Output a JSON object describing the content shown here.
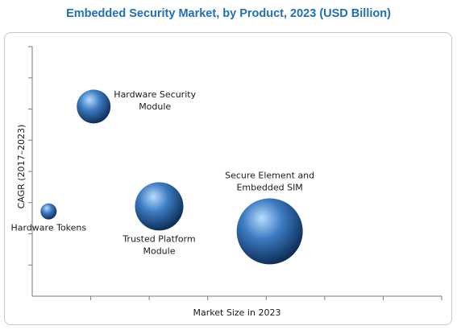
{
  "chart_data": {
    "type": "scatter",
    "title": "Embedded Security Market, by Product, 2023 (USD Billion)",
    "xlabel": "Market Size in 2023",
    "ylabel": "CAGR (2017–2023)",
    "xlim": [
      0,
      10
    ],
    "ylim": [
      0,
      10
    ],
    "grid": false,
    "legend": "none",
    "series": [
      {
        "points": [
          {
            "label": "Hardware Tokens",
            "x": 0.4,
            "y": 3.4,
            "size": 0.5,
            "label_lines": [
              "Hardware Tokens"
            ]
          },
          {
            "label": "Hardware Security Module",
            "x": 1.5,
            "y": 7.6,
            "size": 1.05,
            "label_lines": [
              "Hardware Security",
              "Module"
            ]
          },
          {
            "label": "Trusted Platform Module",
            "x": 3.1,
            "y": 3.6,
            "size": 1.5,
            "label_lines": [
              "Trusted Platform",
              "Module"
            ]
          },
          {
            "label": "Secure Element and Embedded SIM",
            "x": 5.8,
            "y": 2.6,
            "size": 2.05,
            "label_lines": [
              "Secure Element and",
              "Embedded SIM"
            ]
          }
        ]
      }
    ],
    "colors": {
      "bubble_light": "#b9dcff",
      "bubble_mid": "#3d7cc2",
      "bubble_dark": "#0d2f5a",
      "title": "#1f6fb5"
    }
  }
}
